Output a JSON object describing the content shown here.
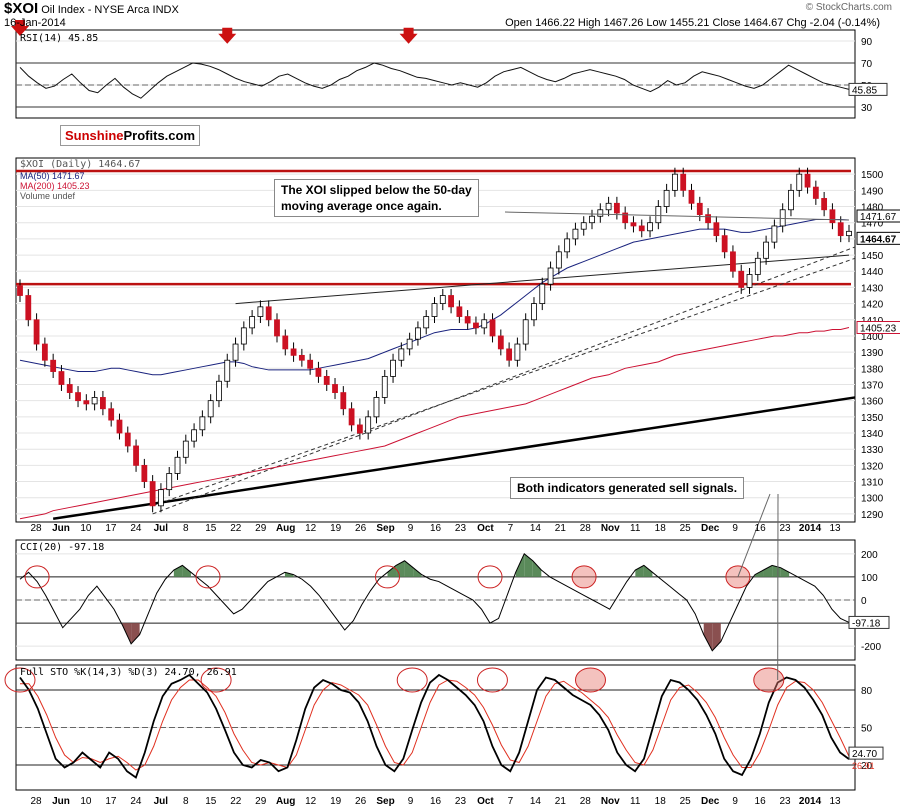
{
  "header": {
    "symbol": "$XOI",
    "name": "Oil Index - NYSE Arca INDX",
    "date": "16-Jan-2014",
    "ohlc": "Open 1466.22  High 1467.26  Low 1455.21  Close 1464.67  Chg -2.04 (-0.14%)",
    "credit": "© StockCharts.com"
  },
  "logo": {
    "part1": "Sunshine",
    "part2": "Profits.com"
  },
  "annotations": {
    "ma_note_line1": "The XOI slipped below the 50-day",
    "ma_note_line2": "moving average once again.",
    "sell_note": "Both indicators generated sell signals."
  },
  "colors": {
    "up": "#ffffff",
    "down": "#cc1122",
    "ma50": "#1a237e",
    "ma200": "#cc1133",
    "resistance": "#bb1111",
    "sto_d": "#e03020"
  },
  "chart_data": [
    {
      "type": "line",
      "panel": "rsi",
      "title": "RSI(14) 45.85",
      "ylim": [
        20,
        100
      ],
      "yticks": [
        30,
        50,
        70,
        90
      ],
      "ytick_labels": [
        "30",
        "50",
        "70",
        "90"
      ],
      "levels": [
        30,
        70
      ],
      "last_label": "45.85",
      "values": [
        66,
        58,
        52,
        47,
        49,
        55,
        60,
        52,
        45,
        43,
        50,
        56,
        48,
        42,
        38,
        45,
        52,
        58,
        62,
        66,
        70,
        69,
        67,
        64,
        60,
        56,
        53,
        51,
        49,
        53,
        58,
        60,
        56,
        52,
        49,
        47,
        50,
        55,
        58,
        63,
        66,
        70,
        68,
        65,
        63,
        60,
        57,
        56,
        54,
        52,
        50,
        52,
        50,
        48,
        52,
        58,
        62,
        64,
        66,
        62,
        58,
        55,
        53,
        56,
        60,
        62,
        64,
        62,
        60,
        58,
        55,
        50,
        47,
        44,
        48,
        54,
        50,
        52,
        58,
        62,
        60,
        58,
        55,
        52,
        49,
        47,
        50,
        56,
        62,
        68,
        64,
        60,
        56,
        52,
        50,
        48,
        46
      ]
    },
    {
      "type": "candlestick",
      "panel": "price",
      "title": "$XOI (Daily) 1464.67",
      "legend": [
        "MA(50) 1471.67",
        "MA(200) 1405.23",
        "Volume undef"
      ],
      "ylim": [
        1285,
        1510
      ],
      "yticks": [
        1290,
        1300,
        1310,
        1320,
        1330,
        1340,
        1350,
        1360,
        1370,
        1380,
        1390,
        1400,
        1410,
        1420,
        1430,
        1440,
        1450,
        1460,
        1470,
        1480,
        1490,
        1500
      ],
      "ytick_labels": [
        "1290",
        "1300",
        "1310",
        "1320",
        "1330",
        "1340",
        "1350",
        "1360",
        "1370",
        "1380",
        "1390",
        "1400",
        "1410",
        "1420",
        "1430",
        "1440",
        "1450",
        "1460",
        "1470",
        "1480",
        "1490",
        "1500"
      ],
      "price_labels": [
        "1471.67",
        "1464.67",
        "1405.23"
      ],
      "resistance_levels": [
        1502,
        1432
      ],
      "xlabels": [
        "28",
        "Jun",
        "10",
        "17",
        "24",
        "Jul",
        "8",
        "15",
        "22",
        "29",
        "Aug",
        "12",
        "19",
        "26",
        "Sep",
        "9",
        "16",
        "23",
        "Oct",
        "7",
        "14",
        "21",
        "28",
        "Nov",
        "11",
        "18",
        "25",
        "Dec",
        "9",
        "16",
        "23",
        "2014",
        "13"
      ],
      "closes": [
        1425,
        1410,
        1395,
        1385,
        1378,
        1370,
        1365,
        1360,
        1358,
        1362,
        1355,
        1348,
        1340,
        1332,
        1320,
        1310,
        1295,
        1305,
        1315,
        1325,
        1335,
        1342,
        1350,
        1360,
        1372,
        1385,
        1395,
        1405,
        1412,
        1418,
        1410,
        1400,
        1392,
        1388,
        1385,
        1380,
        1375,
        1370,
        1365,
        1355,
        1345,
        1340,
        1350,
        1362,
        1375,
        1385,
        1392,
        1398,
        1405,
        1412,
        1420,
        1425,
        1418,
        1412,
        1408,
        1405,
        1410,
        1400,
        1392,
        1385,
        1395,
        1410,
        1420,
        1432,
        1442,
        1452,
        1460,
        1466,
        1470,
        1474,
        1478,
        1482,
        1476,
        1470,
        1468,
        1465,
        1470,
        1480,
        1490,
        1500,
        1490,
        1482,
        1475,
        1470,
        1462,
        1452,
        1440,
        1430,
        1438,
        1448,
        1458,
        1468,
        1478,
        1490,
        1500,
        1492,
        1485,
        1478,
        1470,
        1462,
        1464.67
      ],
      "ma50": [
        1385,
        1384,
        1383,
        1382,
        1381,
        1380,
        1379,
        1378,
        1378,
        1378,
        1379,
        1380,
        1380,
        1379,
        1378,
        1377,
        1376,
        1376,
        1377,
        1378,
        1379,
        1380,
        1381,
        1382,
        1383,
        1384,
        1384,
        1383,
        1381,
        1380,
        1379,
        1379,
        1379,
        1379,
        1379,
        1379,
        1380,
        1381,
        1382,
        1383,
        1384,
        1385,
        1386,
        1388,
        1390,
        1392,
        1394,
        1396,
        1398,
        1400,
        1402,
        1403,
        1404,
        1404,
        1404,
        1405,
        1407,
        1410,
        1413,
        1417,
        1421,
        1425,
        1429,
        1433,
        1436,
        1439,
        1442,
        1444,
        1446,
        1448,
        1450,
        1452,
        1454,
        1456,
        1458,
        1459,
        1460,
        1461,
        1462,
        1463,
        1464,
        1465,
        1466,
        1466,
        1466,
        1466,
        1465,
        1464,
        1464,
        1465,
        1466,
        1467,
        1468,
        1469,
        1470,
        1471,
        1472,
        1472,
        1472,
        1472,
        1471.67
      ],
      "ma200": [
        1287,
        1288,
        1289,
        1290,
        1292,
        1293,
        1294,
        1295,
        1296,
        1297,
        1298,
        1299,
        1300,
        1301,
        1302,
        1303,
        1304,
        1305,
        1306,
        1307,
        1308,
        1309,
        1310,
        1311,
        1312,
        1313,
        1314,
        1315,
        1316,
        1317,
        1318,
        1319,
        1320,
        1321,
        1322,
        1323,
        1324,
        1325,
        1326,
        1327,
        1328,
        1329,
        1330,
        1331,
        1332,
        1334,
        1336,
        1338,
        1340,
        1342,
        1344,
        1346,
        1348,
        1350,
        1351,
        1352,
        1353,
        1354,
        1355,
        1356,
        1357,
        1358,
        1360,
        1362,
        1364,
        1366,
        1368,
        1370,
        1372,
        1374,
        1375,
        1376,
        1378,
        1380,
        1381,
        1382,
        1383,
        1384,
        1386,
        1388,
        1389,
        1390,
        1391,
        1392,
        1393,
        1394,
        1395,
        1396,
        1397,
        1398,
        1399,
        1400,
        1400,
        1401,
        1402,
        1402,
        1403,
        1403,
        1404,
        1404,
        1405.23
      ]
    },
    {
      "type": "line",
      "panel": "cci",
      "title": "CCI(20) -97.18",
      "ylim": [
        -260,
        260
      ],
      "yticks": [
        -200,
        -100,
        0,
        100,
        200
      ],
      "ytick_labels": [
        "-200",
        "-100",
        "0",
        "100",
        "200"
      ],
      "last_label": "-97.18",
      "values": [
        90,
        120,
        80,
        20,
        -50,
        -120,
        -80,
        -40,
        20,
        60,
        10,
        -40,
        -110,
        -190,
        -150,
        -60,
        30,
        90,
        130,
        150,
        120,
        90,
        60,
        20,
        -20,
        -60,
        -40,
        0,
        40,
        80,
        100,
        120,
        110,
        90,
        60,
        20,
        -30,
        -80,
        -130,
        -90,
        -20,
        40,
        90,
        120,
        150,
        170,
        140,
        110,
        90,
        80,
        60,
        40,
        20,
        0,
        -40,
        -100,
        -80,
        20,
        120,
        200,
        170,
        130,
        100,
        80,
        60,
        40,
        20,
        0,
        -20,
        -40,
        20,
        80,
        130,
        150,
        120,
        90,
        60,
        30,
        0,
        -60,
        -150,
        -220,
        -180,
        -100,
        -20,
        60,
        110,
        130,
        150,
        140,
        120,
        100,
        80,
        60,
        20,
        -40,
        -80,
        -97.18
      ]
    },
    {
      "type": "line",
      "panel": "sto",
      "title": "Full STO %K(14,3) %D(3) 24.70, 26.91",
      "ylim": [
        0,
        100
      ],
      "yticks": [
        20,
        50,
        80
      ],
      "ytick_labels": [
        "20",
        "50",
        "80"
      ],
      "k_last_label": "24.70",
      "k": [
        90,
        80,
        65,
        45,
        25,
        18,
        22,
        30,
        24,
        18,
        30,
        25,
        15,
        10,
        30,
        55,
        75,
        85,
        88,
        92,
        85,
        78,
        65,
        48,
        30,
        20,
        18,
        24,
        22,
        15,
        18,
        40,
        65,
        82,
        88,
        85,
        80,
        78,
        70,
        55,
        35,
        20,
        15,
        25,
        48,
        70,
        86,
        92,
        88,
        82,
        76,
        68,
        55,
        35,
        20,
        15,
        30,
        55,
        80,
        90,
        88,
        82,
        76,
        72,
        68,
        60,
        48,
        30,
        20,
        15,
        25,
        50,
        75,
        88,
        86,
        80,
        72,
        60,
        45,
        25,
        15,
        12,
        25,
        45,
        70,
        86,
        90,
        88,
        82,
        72,
        60,
        42,
        30,
        24.7
      ],
      "d_last_label": "26.91",
      "d": [
        85,
        85,
        75,
        60,
        42,
        28,
        22,
        26,
        25,
        22,
        25,
        27,
        22,
        16,
        20,
        35,
        55,
        72,
        82,
        88,
        88,
        82,
        75,
        62,
        45,
        32,
        22,
        20,
        22,
        20,
        18,
        28,
        48,
        68,
        80,
        86,
        84,
        80,
        76,
        68,
        52,
        35,
        22,
        20,
        30,
        50,
        70,
        84,
        88,
        87,
        82,
        76,
        66,
        52,
        36,
        24,
        22,
        35,
        55,
        75,
        85,
        87,
        82,
        78,
        72,
        66,
        58,
        44,
        32,
        22,
        20,
        32,
        52,
        72,
        82,
        84,
        78,
        70,
        58,
        42,
        28,
        18,
        18,
        30,
        48,
        68,
        82,
        87,
        86,
        80,
        70,
        56,
        42,
        26.91
      ]
    }
  ]
}
